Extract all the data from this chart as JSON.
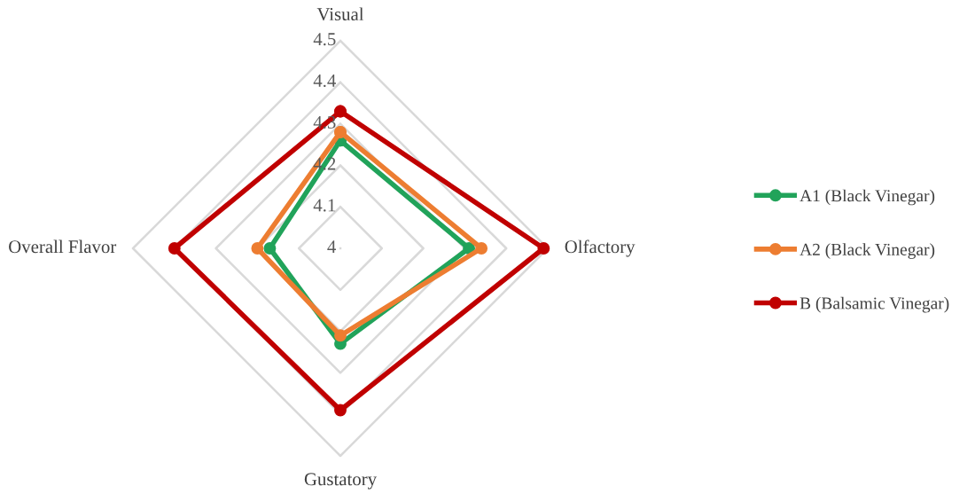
{
  "chart_data": {
    "type": "radar",
    "categories": [
      "Visual",
      "Olfactory",
      "Gustatory",
      "Overall Flavor"
    ],
    "ylim": [
      4,
      4.5
    ],
    "yticks": [
      4,
      4.1,
      4.2,
      4.3,
      4.4,
      4.5
    ],
    "grid": true,
    "legend": "right",
    "marker": "circle",
    "line_style": "solid",
    "series": [
      {
        "name": "A1 (Black Vinegar)",
        "color": "#21a35a",
        "values": [
          4.26,
          4.31,
          4.23,
          4.17
        ]
      },
      {
        "name": "A2 (Black Vinegar)",
        "color": "#ed7d31",
        "values": [
          4.28,
          4.34,
          4.21,
          4.2
        ]
      },
      {
        "name": "B (Balsamic Vinegar)",
        "color": "#c00000",
        "values": [
          4.33,
          4.49,
          4.39,
          4.4
        ]
      }
    ]
  }
}
